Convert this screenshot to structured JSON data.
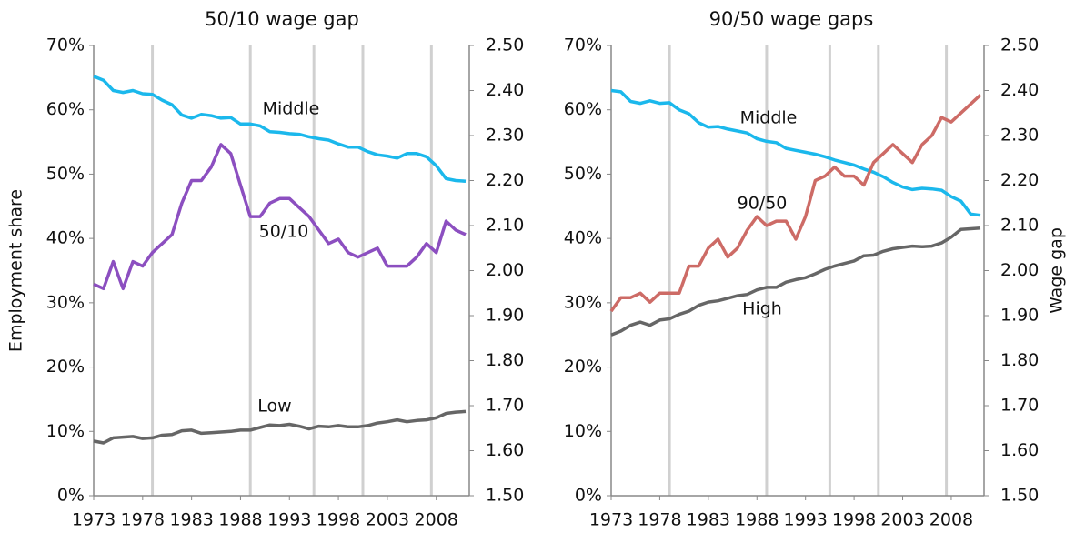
{
  "chart_data": [
    {
      "type": "line",
      "title": "50/10 wage gap",
      "ylabel": "Employment share",
      "x": [
        1973,
        1974,
        1975,
        1976,
        1977,
        1978,
        1979,
        1980,
        1981,
        1982,
        1983,
        1984,
        1985,
        1986,
        1987,
        1988,
        1989,
        1990,
        1991,
        1992,
        1993,
        1994,
        1995,
        1996,
        1997,
        1998,
        1999,
        2000,
        2001,
        2002,
        2003,
        2004,
        2005,
        2006,
        2007,
        2008,
        2009,
        2010,
        2011
      ],
      "xlim": [
        1973,
        2011
      ],
      "xticks": [
        1973,
        1978,
        1983,
        1988,
        1993,
        1998,
        2003,
        2008
      ],
      "ylim": [
        0,
        70
      ],
      "yticks": [
        {
          "value": 0,
          "label": "0%"
        },
        {
          "value": 10,
          "label": "10%"
        },
        {
          "value": 20,
          "label": "20%"
        },
        {
          "value": 30,
          "label": "30%"
        },
        {
          "value": 40,
          "label": "40%"
        },
        {
          "value": 50,
          "label": "50%"
        },
        {
          "value": 60,
          "label": "60%"
        },
        {
          "value": 70,
          "label": "70%"
        }
      ],
      "y2lim": [
        1.5,
        2.5
      ],
      "y2ticks": [
        {
          "value": 1.5,
          "label": "1.50"
        },
        {
          "value": 1.6,
          "label": "1.60"
        },
        {
          "value": 1.7,
          "label": "1.70"
        },
        {
          "value": 1.8,
          "label": "1.80"
        },
        {
          "value": 1.9,
          "label": "1.90"
        },
        {
          "value": 2.0,
          "label": "2.00"
        },
        {
          "value": 2.1,
          "label": "2.10"
        },
        {
          "value": 2.2,
          "label": "2.20"
        },
        {
          "value": 2.3,
          "label": "2.30"
        },
        {
          "value": 2.4,
          "label": "2.40"
        },
        {
          "value": 2.5,
          "label": "2.50"
        }
      ],
      "vlines": [
        1979,
        1989,
        1995.5,
        2000.5,
        2007.5
      ],
      "series": [
        {
          "name": "Middle",
          "color": "#1bb8ec",
          "values": [
            65.2,
            64.6,
            63.0,
            62.7,
            63.0,
            62.5,
            62.4,
            61.5,
            60.8,
            59.2,
            58.7,
            59.3,
            59.1,
            58.7,
            58.8,
            57.8,
            57.8,
            57.5,
            56.6,
            56.5,
            56.3,
            56.2,
            55.8,
            55.5,
            55.3,
            54.7,
            54.2,
            54.2,
            53.5,
            53.0,
            52.8,
            52.5,
            53.2,
            53.2,
            52.7,
            51.3,
            49.3,
            49.0,
            48.9
          ]
        },
        {
          "name": "50/10",
          "color": "#8c4fc0",
          "axis": "y2",
          "values": [
            1.97,
            1.96,
            2.02,
            1.96,
            2.02,
            2.01,
            2.04,
            2.06,
            2.08,
            2.15,
            2.2,
            2.2,
            2.23,
            2.28,
            2.26,
            2.19,
            2.12,
            2.12,
            2.15,
            2.16,
            2.16,
            2.14,
            2.12,
            2.09,
            2.06,
            2.07,
            2.04,
            2.03,
            2.04,
            2.05,
            2.01,
            2.01,
            2.01,
            2.03,
            2.06,
            2.04,
            2.11,
            2.09,
            2.08
          ]
        },
        {
          "name": "Low",
          "color": "#666666",
          "values": [
            8.5,
            8.2,
            9.0,
            9.1,
            9.2,
            8.9,
            9.0,
            9.4,
            9.5,
            10.1,
            10.2,
            9.7,
            9.8,
            9.9,
            10.0,
            10.2,
            10.2,
            10.6,
            11.0,
            10.9,
            11.1,
            10.8,
            10.4,
            10.8,
            10.7,
            10.9,
            10.7,
            10.7,
            10.9,
            11.3,
            11.5,
            11.8,
            11.5,
            11.7,
            11.8,
            12.1,
            12.8,
            13.0,
            13.1
          ]
        }
      ]
    },
    {
      "type": "line",
      "title": "90/50 wage gaps",
      "y2label": "Wage gap",
      "x": [
        1973,
        1974,
        1975,
        1976,
        1977,
        1978,
        1979,
        1980,
        1981,
        1982,
        1983,
        1984,
        1985,
        1986,
        1987,
        1988,
        1989,
        1990,
        1991,
        1992,
        1993,
        1994,
        1995,
        1996,
        1997,
        1998,
        1999,
        2000,
        2001,
        2002,
        2003,
        2004,
        2005,
        2006,
        2007,
        2008,
        2009,
        2010,
        2011
      ],
      "xlim": [
        1973,
        2011
      ],
      "xticks": [
        1973,
        1978,
        1983,
        1988,
        1993,
        1998,
        2003,
        2008
      ],
      "ylim": [
        0,
        70
      ],
      "yticks": [
        {
          "value": 0,
          "label": "0%"
        },
        {
          "value": 10,
          "label": "10%"
        },
        {
          "value": 20,
          "label": "20%"
        },
        {
          "value": 30,
          "label": "30%"
        },
        {
          "value": 40,
          "label": "40%"
        },
        {
          "value": 50,
          "label": "50%"
        },
        {
          "value": 60,
          "label": "60%"
        },
        {
          "value": 70,
          "label": "70%"
        }
      ],
      "y2lim": [
        1.5,
        2.5
      ],
      "y2ticks": [
        {
          "value": 1.5,
          "label": "1.50"
        },
        {
          "value": 1.6,
          "label": "1.60"
        },
        {
          "value": 1.7,
          "label": "1.70"
        },
        {
          "value": 1.8,
          "label": "1.80"
        },
        {
          "value": 1.9,
          "label": "1.90"
        },
        {
          "value": 2.0,
          "label": "2.00"
        },
        {
          "value": 2.1,
          "label": "2.10"
        },
        {
          "value": 2.2,
          "label": "2.20"
        },
        {
          "value": 2.3,
          "label": "2.30"
        },
        {
          "value": 2.4,
          "label": "2.40"
        },
        {
          "value": 2.5,
          "label": "2.50"
        }
      ],
      "vlines": [
        1979,
        1989,
        1995.5,
        2000.5,
        2007.5
      ],
      "series": [
        {
          "name": "Middle",
          "color": "#1bb8ec",
          "values": [
            63.0,
            62.8,
            61.3,
            61.0,
            61.4,
            61.0,
            61.1,
            60.0,
            59.4,
            58.0,
            57.3,
            57.4,
            57.0,
            56.7,
            56.4,
            55.5,
            55.1,
            54.9,
            54.0,
            53.7,
            53.4,
            53.1,
            52.7,
            52.2,
            51.8,
            51.4,
            50.8,
            50.3,
            49.6,
            48.7,
            48.0,
            47.6,
            47.8,
            47.7,
            47.5,
            46.5,
            45.8,
            43.8,
            43.6
          ]
        },
        {
          "name": "90/50",
          "color": "#cd6b66",
          "axis": "y2",
          "values": [
            1.91,
            1.94,
            1.94,
            1.95,
            1.93,
            1.95,
            1.95,
            1.95,
            2.01,
            2.01,
            2.05,
            2.07,
            2.03,
            2.05,
            2.09,
            2.12,
            2.1,
            2.11,
            2.11,
            2.07,
            2.12,
            2.2,
            2.21,
            2.23,
            2.21,
            2.21,
            2.19,
            2.24,
            2.26,
            2.28,
            2.26,
            2.24,
            2.28,
            2.3,
            2.34,
            2.33,
            2.35,
            2.37,
            2.39
          ]
        },
        {
          "name": "High",
          "color": "#666666",
          "values": [
            25.0,
            25.6,
            26.5,
            27.0,
            26.5,
            27.3,
            27.5,
            28.2,
            28.7,
            29.6,
            30.1,
            30.3,
            30.7,
            31.1,
            31.3,
            32.0,
            32.4,
            32.4,
            33.2,
            33.6,
            33.9,
            34.5,
            35.2,
            35.7,
            36.1,
            36.5,
            37.3,
            37.4,
            38.0,
            38.4,
            38.6,
            38.8,
            38.7,
            38.8,
            39.3,
            40.2,
            41.4,
            41.5,
            41.6
          ]
        }
      ]
    }
  ]
}
